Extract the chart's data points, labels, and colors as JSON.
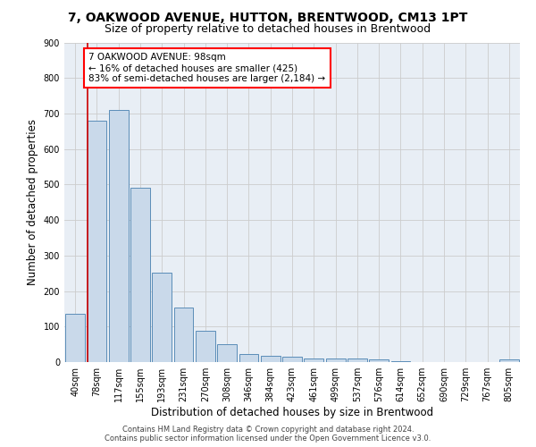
{
  "title": "7, OAKWOOD AVENUE, HUTTON, BRENTWOOD, CM13 1PT",
  "subtitle": "Size of property relative to detached houses in Brentwood",
  "xlabel": "Distribution of detached houses by size in Brentwood",
  "ylabel": "Number of detached properties",
  "footer_line1": "Contains HM Land Registry data © Crown copyright and database right 2024.",
  "footer_line2": "Contains public sector information licensed under the Open Government Licence v3.0.",
  "bar_labels": [
    "40sqm",
    "78sqm",
    "117sqm",
    "155sqm",
    "193sqm",
    "231sqm",
    "270sqm",
    "308sqm",
    "346sqm",
    "384sqm",
    "423sqm",
    "461sqm",
    "499sqm",
    "537sqm",
    "576sqm",
    "614sqm",
    "652sqm",
    "690sqm",
    "729sqm",
    "767sqm",
    "805sqm"
  ],
  "bar_values": [
    135,
    680,
    710,
    490,
    252,
    153,
    88,
    50,
    22,
    18,
    15,
    11,
    10,
    10,
    8,
    2,
    0,
    0,
    0,
    0,
    8
  ],
  "bar_color": "#c9d9ea",
  "bar_edge_color": "#5b8db8",
  "annotation_line1": "7 OAKWOOD AVENUE: 98sqm",
  "annotation_line2": "← 16% of detached houses are smaller (425)",
  "annotation_line3": "83% of semi-detached houses are larger (2,184) →",
  "annotation_box_color": "white",
  "annotation_box_edge": "red",
  "vline_x": 0.58,
  "vline_color": "#cc0000",
  "ylim": [
    0,
    900
  ],
  "yticks": [
    0,
    100,
    200,
    300,
    400,
    500,
    600,
    700,
    800,
    900
  ],
  "grid_color": "#cccccc",
  "bg_color": "#e8eef5",
  "title_fontsize": 10,
  "subtitle_fontsize": 9,
  "axis_label_fontsize": 8.5,
  "tick_fontsize": 7,
  "annotation_fontsize": 7.5,
  "footer_fontsize": 6
}
